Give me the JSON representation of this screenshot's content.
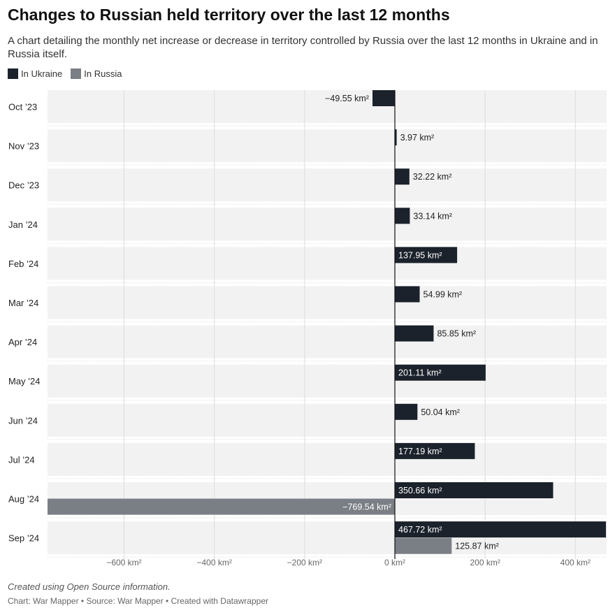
{
  "title": "Changes to Russian held territory over the last 12 months",
  "subtitle": "A chart detailing the monthly net increase or decrease in territory controlled by Russia over the last 12 months in Ukraine and in Russia itself.",
  "notes": "Created using Open Source information.",
  "byline": "Chart: War Mapper • Source: War Mapper • Created with Datawrapper",
  "chart_data": {
    "type": "bar",
    "orientation": "horizontal",
    "categories": [
      "Oct ’23",
      "Nov ’23",
      "Dec ’23",
      "Jan ’24",
      "Feb ’24",
      "Mar ’24",
      "Apr ’24",
      "May ’24",
      "Jun ’24",
      "Jul ’24",
      "Aug ’24",
      "Sep ’24"
    ],
    "series": [
      {
        "name": "In Ukraine",
        "color": "#1b222b",
        "values": [
          -49.55,
          3.97,
          32.22,
          33.14,
          137.95,
          54.99,
          85.85,
          201.11,
          50.04,
          177.19,
          350.66,
          467.72
        ],
        "labels": [
          "−49.55 km²",
          "3.97 km²",
          "32.22 km²",
          "33.14 km²",
          "137.95 km²",
          "54.99 km²",
          "85.85 km²",
          "201.11 km²",
          "50.04 km²",
          "177.19 km²",
          "350.66 km²",
          "467.72 km²"
        ]
      },
      {
        "name": "In Russia",
        "color": "#7a7e85",
        "values": [
          null,
          null,
          null,
          null,
          null,
          null,
          null,
          null,
          null,
          null,
          -769.54,
          125.87
        ],
        "labels": [
          "",
          "",
          "",
          "",
          "",
          "",
          "",
          "",
          "",
          "",
          "−769.54 km²",
          "125.87 km²"
        ]
      }
    ],
    "x_ticks": [
      -600,
      -400,
      -200,
      0,
      200,
      400
    ],
    "x_tick_labels": [
      "−600 km²",
      "−400 km²",
      "−200 km²",
      "0 km²",
      "200 km²",
      "400 km²"
    ],
    "xlim": [
      -769.54,
      467.72
    ],
    "grid": true,
    "legend_position": "top-left"
  }
}
